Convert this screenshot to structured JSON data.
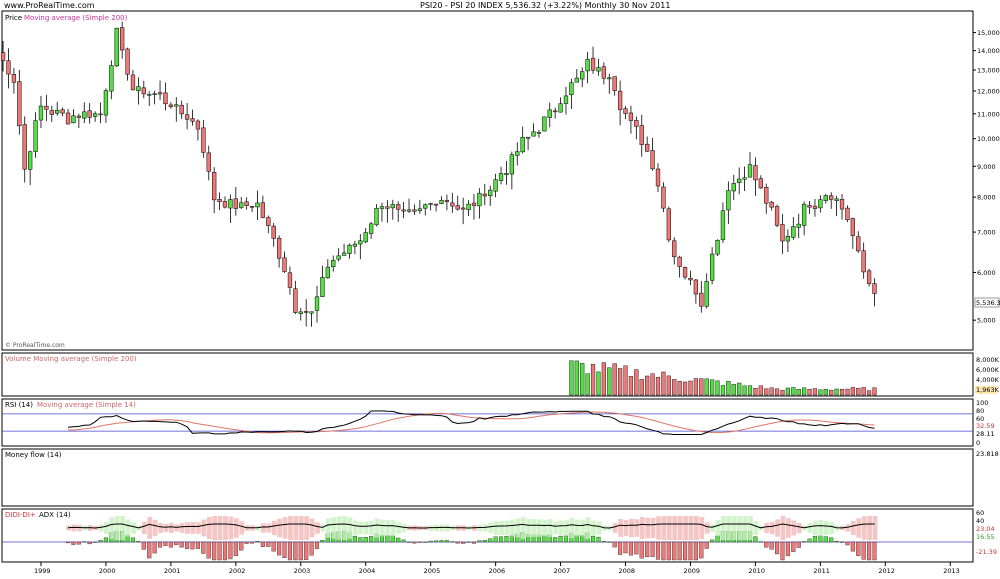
{
  "header": {
    "site": "www.ProRealTime.com",
    "title": "PSI20 - PSI 20 INDEX    5,536.32 (+3.22%)    Monthly  30 Nov 2011"
  },
  "watermark": "© ProRealTime.com",
  "colors": {
    "up": "#55dd44",
    "down": "#ee7777",
    "frame": "#000000",
    "ma_blue": "#4444cc",
    "adx_fill_pos": "#c8f0c0",
    "adx_fill_neg": "#f2b8b8"
  },
  "panels": {
    "price": {
      "label_a": "Price",
      "label_b": "Moving average (Simple 200)",
      "last_label": "5,536.32"
    },
    "volume": {
      "label": "Volume Moving average (Simple 200)",
      "last_label": "1,963K"
    },
    "rsi": {
      "label_a": "RSI (14)",
      "label_b": "Moving average (Simple 14)",
      "last_a": "32.59",
      "last_b": "28.11"
    },
    "money": {
      "label": "Money flow (14)",
      "last": "23.818"
    },
    "adx": {
      "label_a": "DIDI-DI+",
      "label_b": "ADX (14)",
      "last_a": "23.04",
      "last_b": "16.55",
      "last_c": "-21.39"
    }
  },
  "chart_data": [
    {
      "type": "candlestick",
      "title": "PSI20 - PSI 20 INDEX",
      "x_labels": [
        "1999",
        "2000",
        "2001",
        "2002",
        "2003",
        "2004",
        "2005",
        "2006",
        "2007",
        "2008",
        "2009",
        "2010",
        "2011",
        "2012",
        "2013"
      ],
      "y_ticks": [
        "5,000",
        "6,000",
        "7,000",
        "8,000",
        "9,000",
        "10,000",
        "11,000",
        "12,000",
        "13,000",
        "14,000",
        "15,000"
      ],
      "ylim": [
        4600,
        15500
      ],
      "anchors": [
        [
          "1998-05",
          13900
        ],
        [
          "1998-08",
          12500
        ],
        [
          "1998-10",
          8900
        ],
        [
          "1999-01",
          11300
        ],
        [
          "1999-06",
          10900
        ],
        [
          "1999-12",
          11000
        ],
        [
          "2000-03",
          14800
        ],
        [
          "2000-06",
          12100
        ],
        [
          "2000-11",
          11800
        ],
        [
          "2001-06",
          10500
        ],
        [
          "2001-09",
          8000
        ],
        [
          "2001-12",
          7700
        ],
        [
          "2002-05",
          7800
        ],
        [
          "2002-09",
          6500
        ],
        [
          "2002-12",
          5300
        ],
        [
          "2003-03",
          5100
        ],
        [
          "2003-06",
          6200
        ],
        [
          "2003-12",
          6800
        ],
        [
          "2004-04",
          7800
        ],
        [
          "2004-09",
          7400
        ],
        [
          "2005-03",
          8000
        ],
        [
          "2005-07",
          7600
        ],
        [
          "2005-12",
          8300
        ],
        [
          "2006-06",
          9800
        ],
        [
          "2006-12",
          11300
        ],
        [
          "2007-06",
          13200
        ],
        [
          "2007-10",
          12800
        ],
        [
          "2008-01",
          11000
        ],
        [
          "2008-06",
          9200
        ],
        [
          "2008-10",
          6400
        ],
        [
          "2009-03",
          5400
        ],
        [
          "2009-08",
          8300
        ],
        [
          "2009-12",
          8900
        ],
        [
          "2010-04",
          7600
        ],
        [
          "2010-06",
          6700
        ],
        [
          "2010-10",
          7700
        ],
        [
          "2011-03",
          8200
        ],
        [
          "2011-06",
          7400
        ],
        [
          "2011-09",
          6000
        ],
        [
          "2011-11",
          5536
        ]
      ]
    }
  ]
}
